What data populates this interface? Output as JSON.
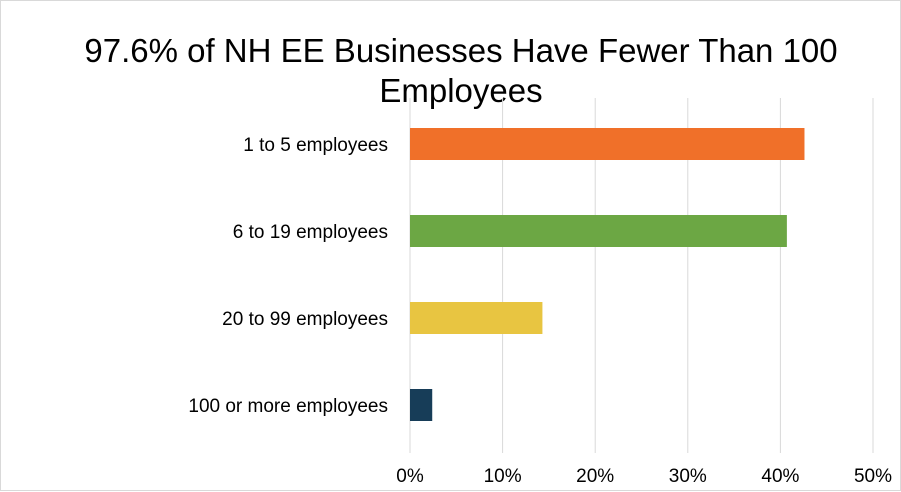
{
  "chart_data": {
    "type": "bar",
    "orientation": "horizontal",
    "title": "97.6% of NH EE Businesses Have Fewer Than 100 Employees",
    "categories": [
      "1 to 5 employees",
      "6 to 19 employees",
      "20 to 99 employees",
      "100 or more employees"
    ],
    "values": [
      42.6,
      40.7,
      14.3,
      2.4
    ],
    "colors": [
      "#f07029",
      "#6ca744",
      "#e8c541",
      "#173d58"
    ],
    "xlim": [
      0,
      50
    ],
    "xticks": [
      0,
      10,
      20,
      30,
      40,
      50
    ],
    "xtick_labels": [
      "0%",
      "10%",
      "20%",
      "30%",
      "40%",
      "50%"
    ],
    "xlabel": "",
    "ylabel": "",
    "grid": true,
    "gridline_color": "#d9d9d9",
    "legend": false
  }
}
